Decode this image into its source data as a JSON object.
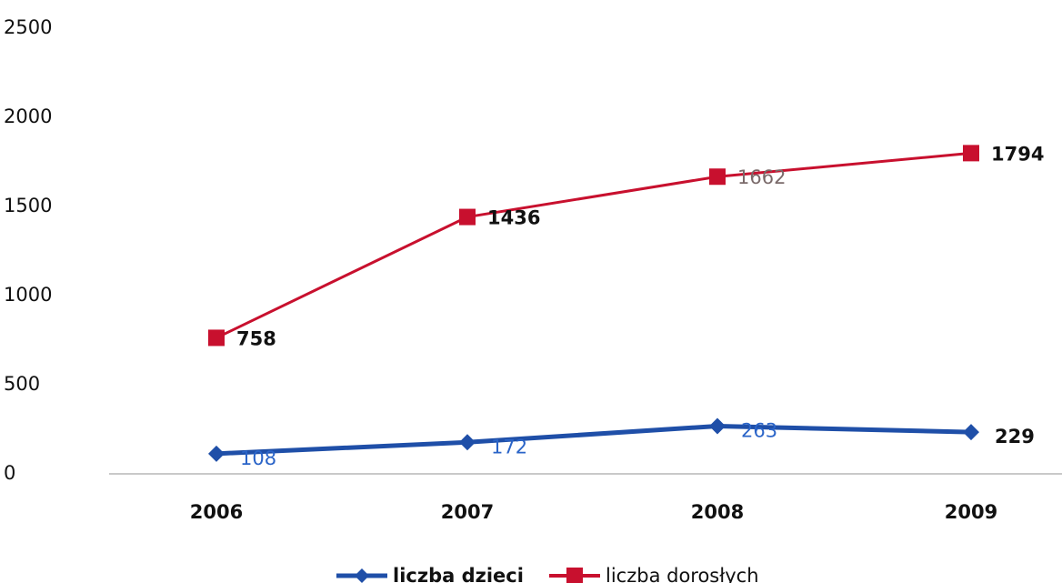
{
  "chart_data": {
    "type": "line",
    "categories": [
      "2006",
      "2007",
      "2008",
      "2009"
    ],
    "series": [
      {
        "name": "liczba dzieci",
        "values": [
          108,
          172,
          263,
          229
        ],
        "labels": [
          "108",
          "172",
          "263",
          "229"
        ],
        "color": "#1f4fa8",
        "marker": "diamond"
      },
      {
        "name": "liczba dorosłych",
        "values": [
          758,
          1436,
          1662,
          1794
        ],
        "labels": [
          "758",
          "1436",
          "1662",
          "1794"
        ],
        "color": "#c8102e",
        "marker": "square"
      }
    ],
    "yticks": [
      "0",
      "500",
      "1000",
      "1500",
      "2000",
      "2500"
    ],
    "ylim": [
      0,
      2500
    ],
    "grid": false,
    "legend_position": "bottom-center"
  }
}
